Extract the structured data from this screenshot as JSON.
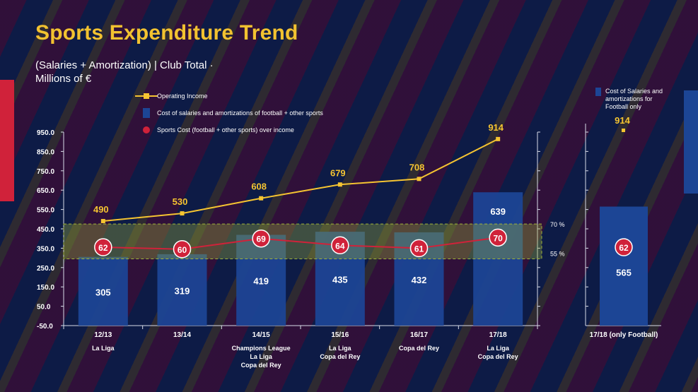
{
  "title": "Sports Expenditure Trend",
  "subtitle_line1": "(Salaries + Amortization) | Club Total ·",
  "subtitle_line2": "Millions of €",
  "colors": {
    "background": "#1a2150",
    "title": "#f2c230",
    "line_income": "#f5c431",
    "bar": "#1c4595",
    "ratio": "#d0223a",
    "band": "#9fb23a",
    "accent_red": "#d0223a",
    "accent_blue": "#1c4595"
  },
  "chart_data": {
    "type": "bar",
    "categories": [
      "12/13",
      "13/14",
      "14/15",
      "15/16",
      "16/17",
      "17/18"
    ],
    "category_notes": [
      [
        "La Liga"
      ],
      [],
      [
        "Champions League",
        "La Liga",
        "Copa del Rey"
      ],
      [
        "La Liga",
        "Copa del Rey"
      ],
      [
        "Copa del Rey"
      ],
      [
        "La Liga",
        "Copa del Rey"
      ]
    ],
    "yticks": [
      "950.0",
      "850.0",
      "750.0",
      "650.0",
      "550.0",
      "450.0",
      "350.0",
      "250.0",
      "150.0",
      "50.0",
      "-50.0"
    ],
    "ylim": [
      -50,
      950
    ],
    "band_labels": [
      "70 %",
      "55 %"
    ],
    "band_range": [
      295,
      475
    ],
    "series": [
      {
        "name": "Operating Income",
        "type": "line",
        "values": [
          490,
          530,
          608,
          679,
          708,
          914
        ]
      },
      {
        "name": "Cost of salaries and amortizations of football + other sports",
        "type": "bar",
        "values": [
          305,
          319,
          419,
          435,
          432,
          639
        ]
      },
      {
        "name": "Sports Cost (football  + other sports) over income",
        "type": "marker",
        "values": [
          62,
          60,
          69,
          64,
          61,
          70
        ],
        "y_positions": [
          355,
          345,
          400,
          365,
          350,
          405
        ]
      }
    ],
    "side_panel": {
      "category": "17/18 (only Football)",
      "legend_lines": [
        "Cost of Salaries and",
        "amortizations for",
        "Football only"
      ],
      "income": 914,
      "bar_value": 565,
      "ratio": 62,
      "ratio_y": 355
    }
  }
}
